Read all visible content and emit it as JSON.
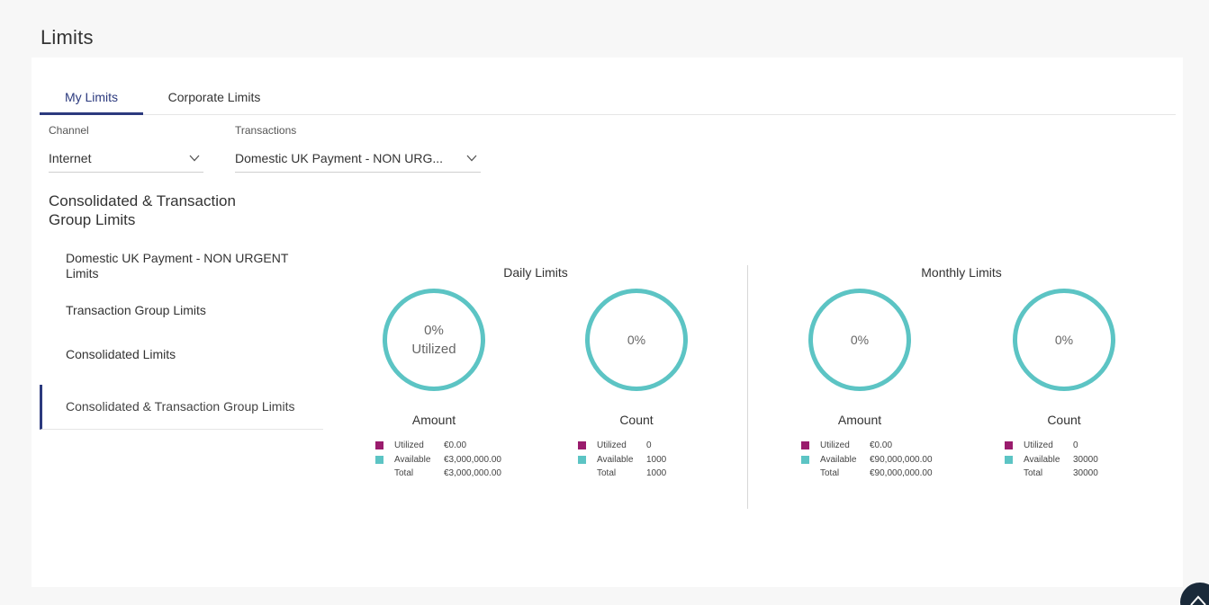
{
  "page": {
    "title": "Limits"
  },
  "tabs": [
    {
      "label": "My Limits"
    },
    {
      "label": "Corporate Limits"
    }
  ],
  "filters": {
    "channel": {
      "label": "Channel",
      "value": "Internet"
    },
    "transactions": {
      "label": "Transactions",
      "value": "Domestic UK Payment - NON URG..."
    }
  },
  "section": {
    "title": "Consolidated & Transaction Group Limits"
  },
  "nav": [
    {
      "label": "Domestic UK Payment - NON URGENT Limits"
    },
    {
      "label": "Transaction Group Limits"
    },
    {
      "label": "Consolidated Limits"
    },
    {
      "label": "Consolidated & Transaction Group Limits"
    }
  ],
  "daily": {
    "title": "Daily Limits",
    "amount": {
      "percent": "0%",
      "caption": "Utilized",
      "label": "Amount",
      "utilized_fraction": 0,
      "legend": [
        {
          "label": "Utilized",
          "value": "€0.00"
        },
        {
          "label": "Available",
          "value": "€3,000,000.00"
        },
        {
          "label": "Total",
          "value": "€3,000,000.00"
        }
      ]
    },
    "count": {
      "percent": "0%",
      "label": "Count",
      "utilized_fraction": 0,
      "legend": [
        {
          "label": "Utilized",
          "value": "0"
        },
        {
          "label": "Available",
          "value": "1000"
        },
        {
          "label": "Total",
          "value": "1000"
        }
      ]
    }
  },
  "monthly": {
    "title": "Monthly Limits",
    "amount": {
      "percent": "0%",
      "label": "Amount",
      "utilized_fraction": 0,
      "legend": [
        {
          "label": "Utilized",
          "value": "€0.00"
        },
        {
          "label": "Available",
          "value": "€90,000,000.00"
        },
        {
          "label": "Total",
          "value": "€90,000,000.00"
        }
      ]
    },
    "count": {
      "percent": "0%",
      "label": "Count",
      "utilized_fraction": 0,
      "legend": [
        {
          "label": "Utilized",
          "value": "0"
        },
        {
          "label": "Available",
          "value": "30000"
        },
        {
          "label": "Total",
          "value": "30000"
        }
      ]
    }
  },
  "colors": {
    "accent": "#2c3a7e",
    "utilized": "#9a1c6d",
    "available": "#5cc4c4"
  },
  "icons": {
    "dropdown": "chevron-down-icon",
    "scroll_top": "chevron-up-icon"
  }
}
